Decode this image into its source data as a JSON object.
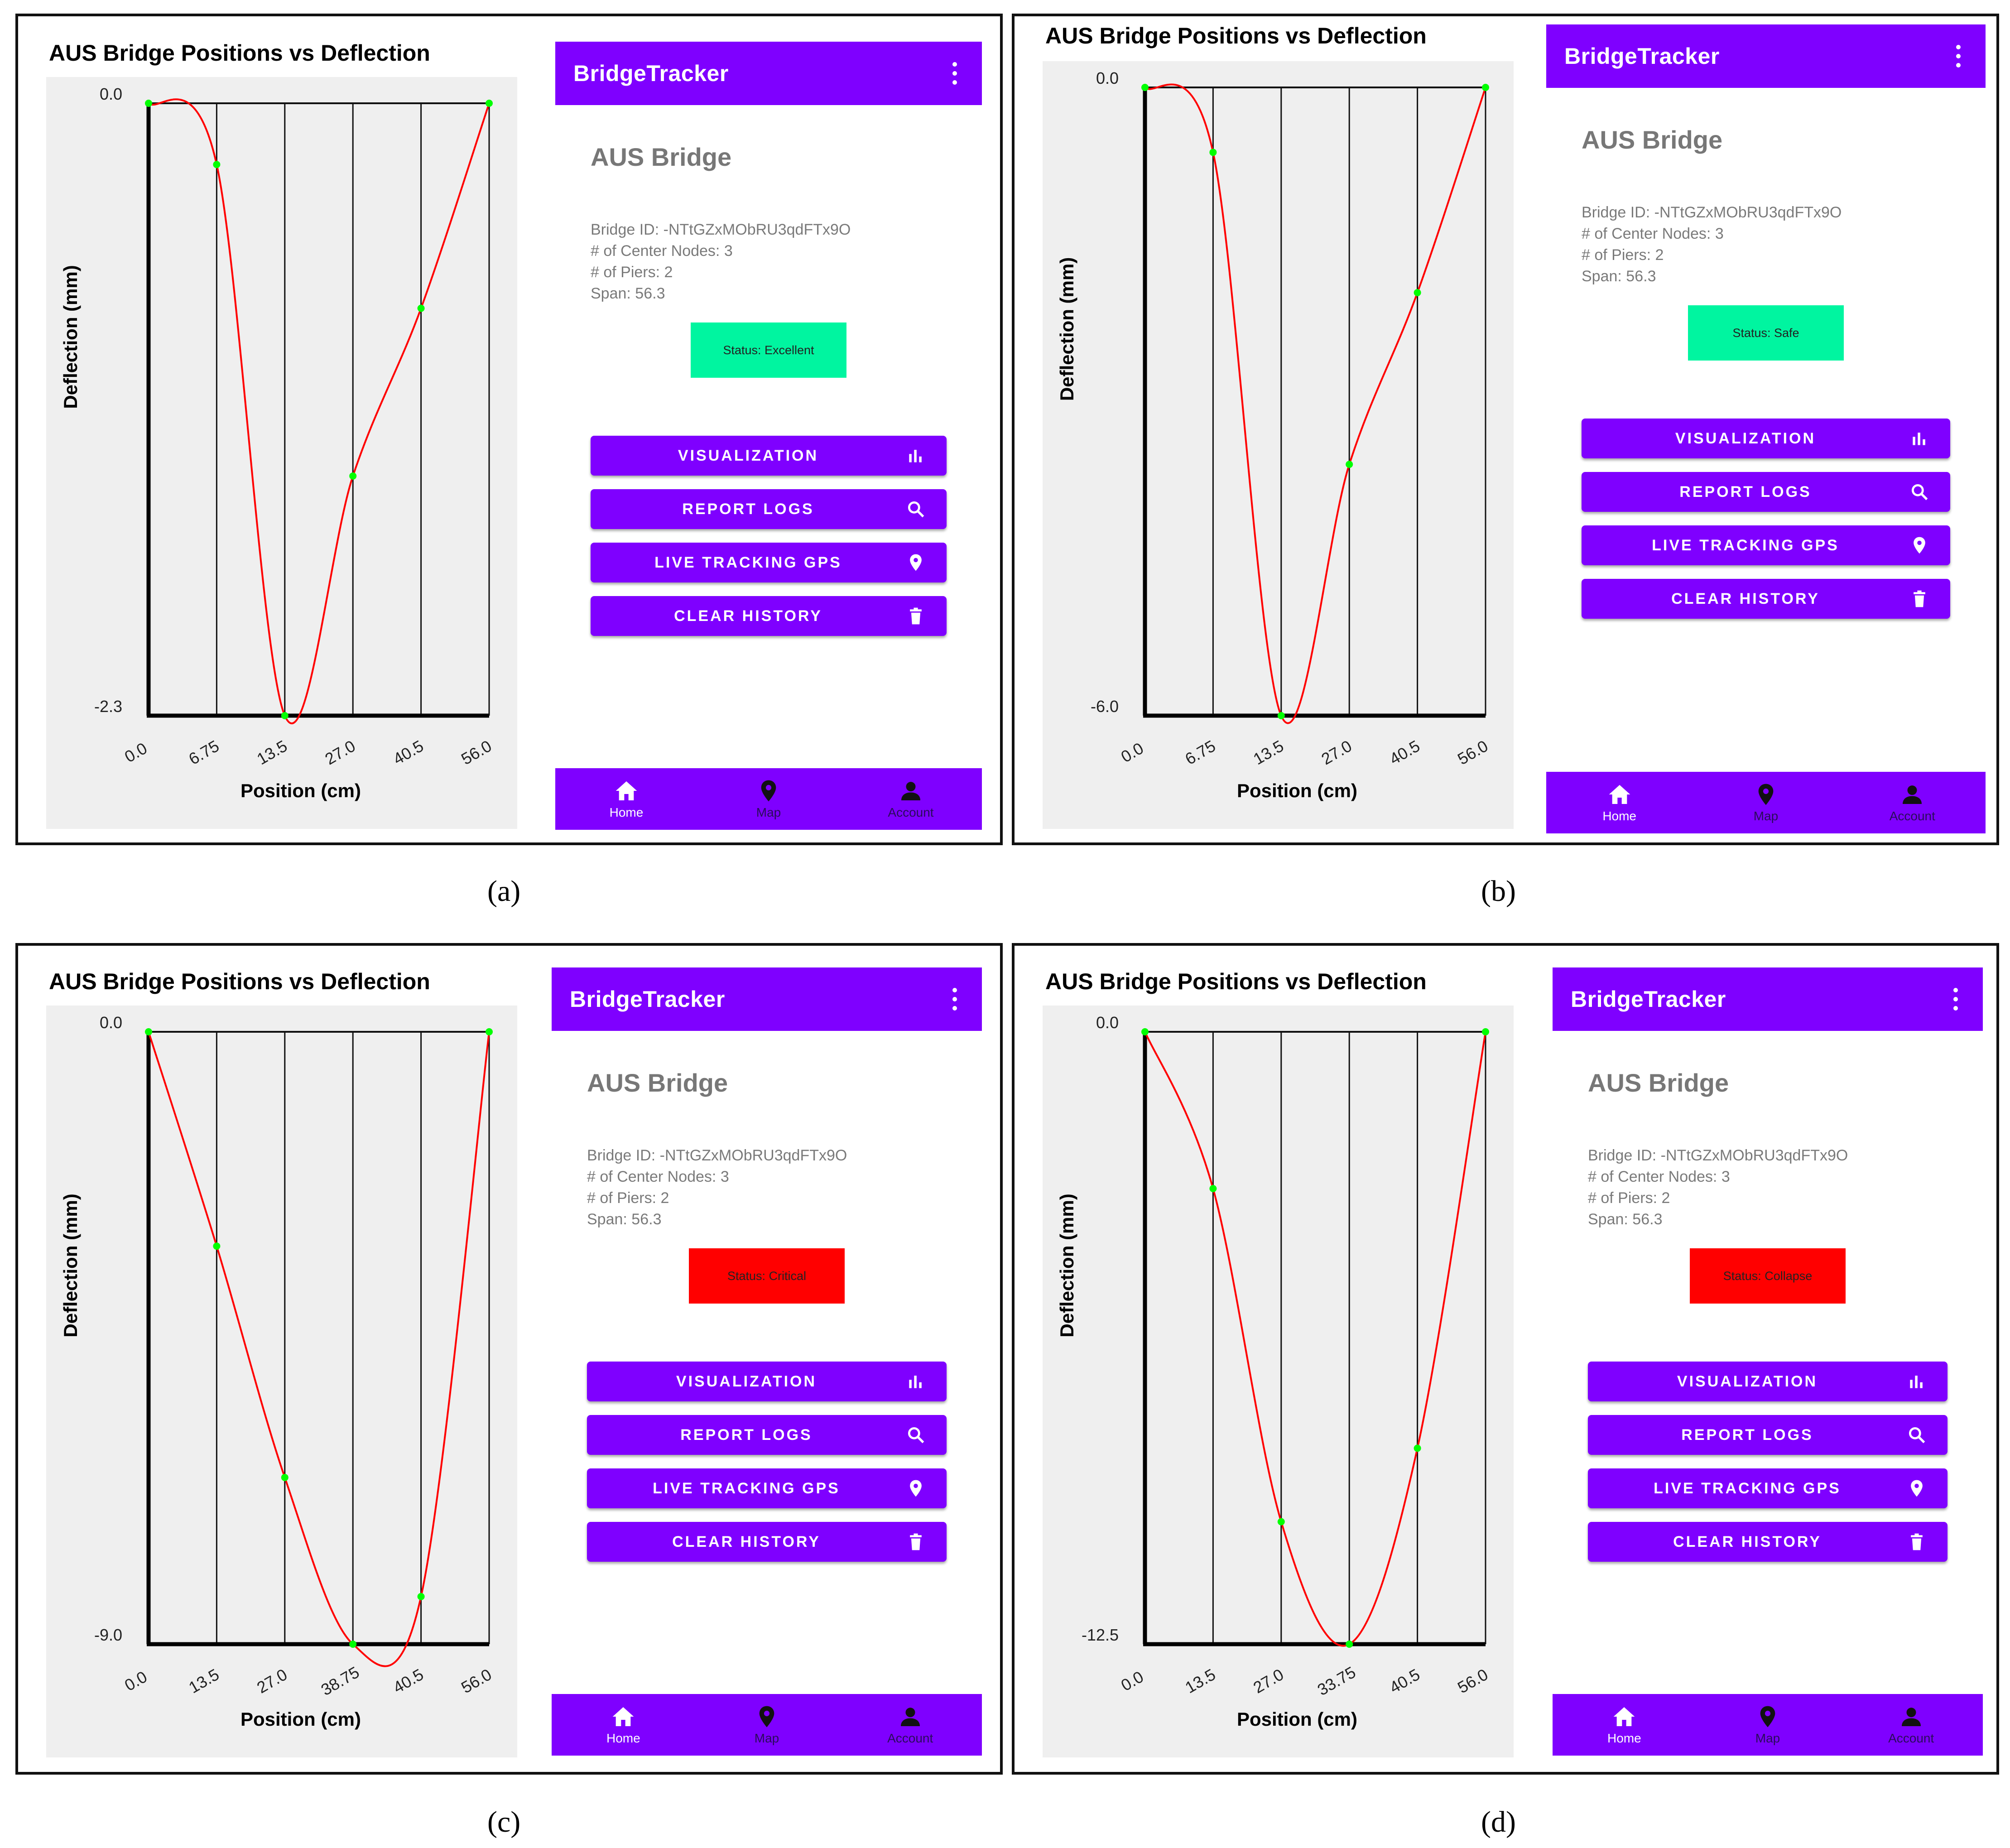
{
  "captions": [
    "(a)",
    "(b)",
    "(c)",
    "(d)"
  ],
  "colors": {
    "accent": "#7f00ff",
    "curve": "#ff0000",
    "node": "#00ff00",
    "status_excellent": "#00f5a0",
    "status_safe": "#00f5a0",
    "status_critical": "#ff0000",
    "status_collapse": "#ff0000"
  },
  "panels": [
    {
      "chart_title": "AUS Bridge Positions vs Deflection",
      "app_title": "BridgeTracker",
      "bridge_name": "AUS Bridge",
      "bridge_id": "Bridge ID: -NTtGZxMObRU3qdFTx9O",
      "center_nodes": "# of Center Nodes: 3",
      "piers": "# of Piers: 2",
      "span": "Span: 56.3",
      "status": "Status: Excellent",
      "buttons": [
        "VISUALIZATION",
        "REPORT LOGS",
        "LIVE TRACKING GPS",
        "CLEAR HISTORY"
      ],
      "nav": [
        "Home",
        "Map",
        "Account"
      ]
    },
    {
      "chart_title": "AUS Bridge Positions vs Deflection",
      "app_title": "BridgeTracker",
      "bridge_name": "AUS Bridge",
      "bridge_id": "Bridge ID: -NTtGZxMObRU3qdFTx9O",
      "center_nodes": "# of Center Nodes: 3",
      "piers": "# of Piers: 2",
      "span": "Span: 56.3",
      "status": "Status: Safe",
      "buttons": [
        "VISUALIZATION",
        "REPORT LOGS",
        "LIVE TRACKING GPS",
        "CLEAR HISTORY"
      ],
      "nav": [
        "Home",
        "Map",
        "Account"
      ]
    },
    {
      "chart_title": "AUS Bridge Positions vs Deflection",
      "app_title": "BridgeTracker",
      "bridge_name": "AUS Bridge",
      "bridge_id": "Bridge ID: -NTtGZxMObRU3qdFTx9O",
      "center_nodes": "# of Center Nodes: 3",
      "piers": "# of Piers: 2",
      "span": "Span: 56.3",
      "status": "Status: Critical",
      "buttons": [
        "VISUALIZATION",
        "REPORT LOGS",
        "LIVE TRACKING GPS",
        "CLEAR HISTORY"
      ],
      "nav": [
        "Home",
        "Map",
        "Account"
      ]
    },
    {
      "chart_title": "AUS Bridge Positions vs Deflection",
      "app_title": "BridgeTracker",
      "bridge_name": "AUS Bridge",
      "bridge_id": "Bridge ID: -NTtGZxMObRU3qdFTx9O",
      "center_nodes": "# of Center Nodes: 3",
      "piers": "# of Piers: 2",
      "span": "Span: 56.3",
      "status": "Status: Collapse",
      "buttons": [
        "VISUALIZATION",
        "REPORT LOGS",
        "LIVE TRACKING GPS",
        "CLEAR HISTORY"
      ],
      "nav": [
        "Home",
        "Map",
        "Account"
      ]
    }
  ],
  "chart_data": [
    {
      "type": "line",
      "title": "AUS Bridge Positions vs Deflection",
      "xlabel": "Position (cm)",
      "ylabel": "Deflection (mm)",
      "x_tick_labels": [
        "0.0",
        "6.75",
        "13.5",
        "27.0",
        "40.5",
        "56.0"
      ],
      "y_tick_labels": [
        "0.0",
        "-2.3"
      ],
      "ylim": [
        -2.3,
        0.0
      ],
      "x": [
        "0.0",
        "6.75",
        "13.5",
        "27.0",
        "40.5",
        "56.0"
      ],
      "y": [
        0.0,
        -0.23,
        -2.3,
        -1.4,
        -0.77,
        0.0
      ],
      "grid": "vertical lines at each node"
    },
    {
      "type": "line",
      "title": "AUS Bridge Positions vs Deflection",
      "xlabel": "Position (cm)",
      "ylabel": "Deflection (mm)",
      "x_tick_labels": [
        "0.0",
        "6.75",
        "13.5",
        "27.0",
        "40.5",
        "56.0"
      ],
      "y_tick_labels": [
        "0.0",
        "-6.0"
      ],
      "ylim": [
        -6.0,
        0.0
      ],
      "x": [
        "0.0",
        "6.75",
        "13.5",
        "27.0",
        "40.5",
        "56.0"
      ],
      "y": [
        0.0,
        -0.62,
        -6.0,
        -3.6,
        -1.96,
        0.0
      ],
      "grid": "vertical lines at each node"
    },
    {
      "type": "line",
      "title": "AUS Bridge Positions vs Deflection",
      "xlabel": "Position (cm)",
      "ylabel": "Deflection (mm)",
      "x_tick_labels": [
        "0.0",
        "13.5",
        "27.0",
        "38.75",
        "40.5",
        "56.0"
      ],
      "y_tick_labels": [
        "0.0",
        "-9.0"
      ],
      "ylim": [
        -9.0,
        0.0
      ],
      "x": [
        "0.0",
        "13.5",
        "27.0",
        "38.75",
        "40.5",
        "56.0"
      ],
      "y": [
        0.0,
        -3.15,
        -6.55,
        -9.0,
        -8.3,
        0.0
      ],
      "grid": "vertical lines at each node"
    },
    {
      "type": "line",
      "title": "AUS Bridge Positions vs Deflection",
      "xlabel": "Position (cm)",
      "ylabel": "Deflection (mm)",
      "x_tick_labels": [
        "0.0",
        "13.5",
        "27.0",
        "33.75",
        "40.5",
        "56.0"
      ],
      "y_tick_labels": [
        "0.0",
        "-12.5"
      ],
      "ylim": [
        -12.5,
        0.0
      ],
      "x": [
        "0.0",
        "13.5",
        "27.0",
        "33.75",
        "40.5",
        "56.0"
      ],
      "y": [
        0.0,
        -3.2,
        -10.0,
        -12.5,
        -8.5,
        0.0
      ],
      "grid": "vertical lines at each node"
    }
  ]
}
